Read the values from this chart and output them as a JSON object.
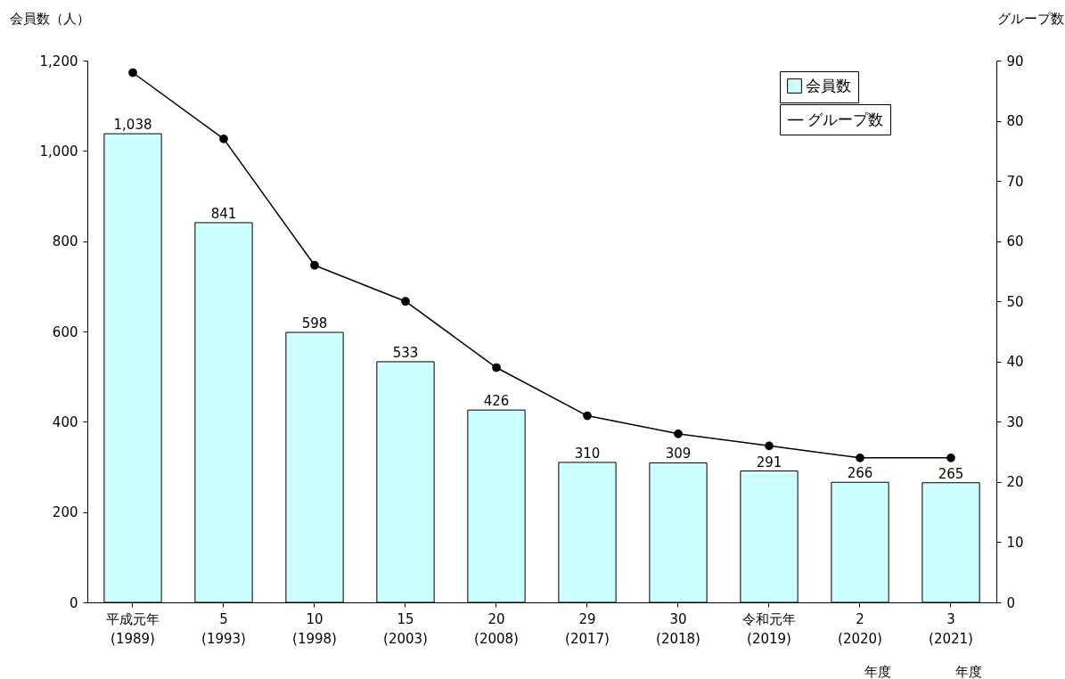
{
  "chart_data": {
    "type": "bar",
    "ylabel": "会員数（人）",
    "y2label": "グループ数",
    "categories": [
      "平成元年\n(1989)",
      "5\n(1993)",
      "10\n(1998)",
      "15\n(2003)",
      "20\n(2008)",
      "29\n(2017)",
      "30\n(2018)",
      "令和元年\n(2019)",
      "2\n(2020)",
      "3\n(2021)"
    ],
    "series": [
      {
        "name": "会員数",
        "color": "#ccffff",
        "values": [
          1038,
          841,
          598,
          533,
          426,
          310,
          309,
          291,
          266,
          265
        ],
        "value_labels": [
          "1,038",
          "841",
          "598",
          "533",
          "426",
          "310",
          "309",
          "291",
          "266",
          "265"
        ]
      },
      {
        "name": "グループ数",
        "type": "line",
        "axis": "y2",
        "color": "#000000",
        "marker": "circle",
        "values": [
          88,
          77,
          56,
          50,
          39,
          31,
          28,
          26,
          24,
          24
        ]
      }
    ],
    "ylim": [
      0,
      1200
    ],
    "yticks": [
      0,
      200,
      400,
      600,
      800,
      {
        "value": 1000,
        "label": "1,000"
      },
      {
        "value": 1200,
        "label": "1,200"
      }
    ],
    "y2lim": [
      0,
      90
    ],
    "y2ticks": [
      0,
      10,
      20,
      30,
      40,
      50,
      60,
      70,
      80,
      90
    ],
    "grid": false,
    "legend": "top right",
    "annotations": [
      "年度",
      "年度"
    ]
  }
}
